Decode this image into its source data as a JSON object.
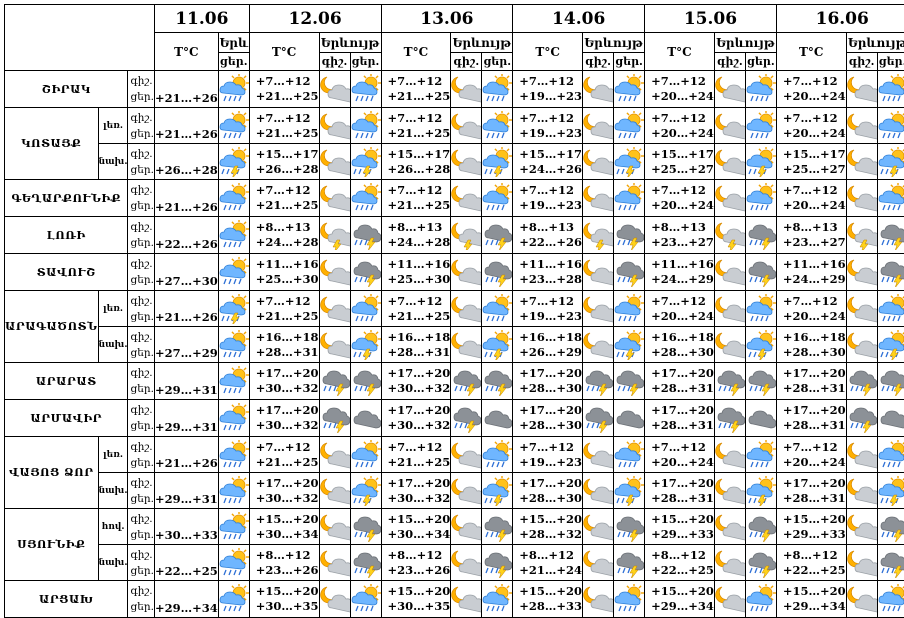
{
  "header": {
    "dates": [
      "11.06",
      "12.06",
      "13.06",
      "14.06",
      "15.06",
      "16.06"
    ],
    "temp_label": "T°C",
    "weather_label": "Երևույթ",
    "weather_label_short": "Երև",
    "day_label": "ցեր.",
    "night_label": "գիշ."
  },
  "regions": [
    {
      "name": "ՇԻՐԱԿ",
      "rows": [
        {
          "sub": "",
          "day0": "+21…+26",
          "days": [
            [
              "+7…+12",
              "+21…+25"
            ],
            [
              "+7…+12",
              "+21…+25"
            ],
            [
              "+7…+12",
              "+19…+23"
            ],
            [
              "+7…+12",
              "+20…+24"
            ],
            [
              "+7…+12",
              "+20…+24"
            ]
          ],
          "icons": {
            "d0": "sun-rain",
            "n": "moon-cloud",
            "d": "sun-rain"
          }
        }
      ]
    },
    {
      "name": "ԿՈՏԱՅՔ",
      "rows": [
        {
          "sub": "լեռ.",
          "day0": "+21…+26",
          "days": [
            [
              "+7…+12",
              "+21…+25"
            ],
            [
              "+7…+12",
              "+21…+25"
            ],
            [
              "+7…+12",
              "+19…+23"
            ],
            [
              "+7…+12",
              "+20…+24"
            ],
            [
              "+7…+12",
              "+20…+24"
            ]
          ],
          "icons": {
            "d0": "sun-rain",
            "n": "moon-cloud",
            "d": "sun-rain"
          }
        },
        {
          "sub": "նախ.",
          "day0": "+26…+28",
          "days": [
            [
              "+15…+17",
              "+26…+28"
            ],
            [
              "+15…+17",
              "+26…+28"
            ],
            [
              "+15…+17",
              "+24…+26"
            ],
            [
              "+15…+17",
              "+25…+27"
            ],
            [
              "+15…+17",
              "+25…+27"
            ]
          ],
          "icons": {
            "d0": "sun-storm",
            "n": "moon-cloud",
            "d": "sun-storm"
          }
        }
      ]
    },
    {
      "name": "ԳԵՂԱՐՔՈՒՆԻՔ",
      "rows": [
        {
          "sub": "",
          "day0": "+21…+26",
          "days": [
            [
              "+7…+12",
              "+21…+25"
            ],
            [
              "+7…+12",
              "+21…+25"
            ],
            [
              "+7…+12",
              "+19…+23"
            ],
            [
              "+7…+12",
              "+20…+24"
            ],
            [
              "+7…+12",
              "+20…+24"
            ]
          ],
          "icons": {
            "d0": "sun-rain",
            "n": "moon-cloud",
            "d": "sun-rain"
          }
        }
      ]
    },
    {
      "name": "ԼՈՌԻ",
      "rows": [
        {
          "sub": "",
          "day0": "+22…+26",
          "days": [
            [
              "+8…+13",
              "+24…+28"
            ],
            [
              "+8…+13",
              "+24…+28"
            ],
            [
              "+8…+13",
              "+22…+26"
            ],
            [
              "+8…+13",
              "+23…+27"
            ],
            [
              "+8…+13",
              "+23…+27"
            ]
          ],
          "icons": {
            "d0": "sun-rain",
            "n": "moon-storm",
            "d": "cloud-storm"
          }
        }
      ]
    },
    {
      "name": "ՏԱՎՈՒՇ",
      "rows": [
        {
          "sub": "",
          "day0": "+27…+30",
          "days": [
            [
              "+11…+16",
              "+25…+30"
            ],
            [
              "+11…+16",
              "+25…+30"
            ],
            [
              "+11…+16",
              "+23…+28"
            ],
            [
              "+11…+16",
              "+24…+29"
            ],
            [
              "+11…+16",
              "+24…+29"
            ]
          ],
          "icons": {
            "d0": "sun-rain",
            "n": "moon-cloud",
            "d": "cloud-storm"
          }
        }
      ]
    },
    {
      "name": "ԱՐԱԳԱԾՈՏՆ",
      "rows": [
        {
          "sub": "լեռ.",
          "day0": "+21…+26",
          "days": [
            [
              "+7…+12",
              "+21…+25"
            ],
            [
              "+7…+12",
              "+21…+25"
            ],
            [
              "+7…+12",
              "+19…+23"
            ],
            [
              "+7…+12",
              "+20…+24"
            ],
            [
              "+7…+12",
              "+20…+24"
            ]
          ],
          "icons": {
            "d0": "sun-storm",
            "n": "moon-cloud",
            "d": "sun-rain"
          }
        },
        {
          "sub": "նախ.",
          "day0": "+27…+29",
          "days": [
            [
              "+16…+18",
              "+28…+31"
            ],
            [
              "+16…+18",
              "+28…+31"
            ],
            [
              "+16…+18",
              "+26…+29"
            ],
            [
              "+16…+18",
              "+28…+30"
            ],
            [
              "+16…+18",
              "+28…+30"
            ]
          ],
          "icons": {
            "d0": "sun-rain",
            "n": "moon-cloud",
            "d": "sun-storm"
          }
        }
      ]
    },
    {
      "name": "ԱՐԱՐԱՏ",
      "rows": [
        {
          "sub": "",
          "day0": "+29…+31",
          "days": [
            [
              "+17…+20",
              "+30…+32"
            ],
            [
              "+17…+20",
              "+30…+32"
            ],
            [
              "+17…+20",
              "+28…+30"
            ],
            [
              "+17…+20",
              "+28…+31"
            ],
            [
              "+17…+20",
              "+28…+31"
            ]
          ],
          "icons": {
            "d0": "sun-rain",
            "n": "cloud-storm",
            "d": "cloud-storm"
          }
        }
      ]
    },
    {
      "name": "ԱՐՄԱՎԻՐ",
      "rows": [
        {
          "sub": "",
          "day0": "+29…+31",
          "days": [
            [
              "+17…+20",
              "+30…+32"
            ],
            [
              "+17…+20",
              "+30…+32"
            ],
            [
              "+17…+20",
              "+28…+30"
            ],
            [
              "+17…+20",
              "+28…+31"
            ],
            [
              "+17…+20",
              "+28…+31"
            ]
          ],
          "icons": {
            "d0": "sun-rain",
            "n": "cloud-storm",
            "d": "cloud"
          }
        }
      ]
    },
    {
      "name": "ՎԱՅՈՑ ՁՈՐ",
      "rows": [
        {
          "sub": "լեռ.",
          "day0": "+21…+26",
          "days": [
            [
              "+7…+12",
              "+21…+25"
            ],
            [
              "+7…+12",
              "+21…+25"
            ],
            [
              "+7…+12",
              "+19…+23"
            ],
            [
              "+7…+12",
              "+20…+24"
            ],
            [
              "+7…+12",
              "+20…+24"
            ]
          ],
          "icons": {
            "d0": "sun-rain",
            "n": "moon-cloud",
            "d": "sun-rain"
          }
        },
        {
          "sub": "նախ.",
          "day0": "+29…+31",
          "days": [
            [
              "+17…+20",
              "+30…+32"
            ],
            [
              "+17…+20",
              "+30…+32"
            ],
            [
              "+17…+20",
              "+28…+30"
            ],
            [
              "+17…+20",
              "+28…+31"
            ],
            [
              "+17…+20",
              "+28…+31"
            ]
          ],
          "icons": {
            "d0": "sun-rain",
            "n": "moon-cloud",
            "d": "sun-storm"
          }
        }
      ]
    },
    {
      "name": "ՍՅՈՒՆԻՔ",
      "rows": [
        {
          "sub": "հով.",
          "day0": "+30…+33",
          "days": [
            [
              "+15…+20",
              "+30…+34"
            ],
            [
              "+15…+20",
              "+30…+34"
            ],
            [
              "+15…+20",
              "+28…+32"
            ],
            [
              "+15…+20",
              "+29…+33"
            ],
            [
              "+15…+20",
              "+29…+33"
            ]
          ],
          "icons": {
            "d0": "sun-rain",
            "n": "moon-cloud",
            "d": "cloud-storm"
          }
        },
        {
          "sub": "նախ.",
          "day0": "+22…+25",
          "days": [
            [
              "+8…+12",
              "+23…+26"
            ],
            [
              "+8…+12",
              "+23…+26"
            ],
            [
              "+8…+12",
              "+21…+24"
            ],
            [
              "+8…+12",
              "+22…+25"
            ],
            [
              "+8…+12",
              "+22…+25"
            ]
          ],
          "icons": {
            "d0": "sun-rain",
            "n": "moon-cloud",
            "d": "cloud-storm"
          }
        }
      ]
    },
    {
      "name": "ԱՐՑԱԽ",
      "rows": [
        {
          "sub": "",
          "day0": "+29…+34",
          "days": [
            [
              "+15…+20",
              "+30…+35"
            ],
            [
              "+15…+20",
              "+30…+35"
            ],
            [
              "+15…+20",
              "+28…+33"
            ],
            [
              "+15…+20",
              "+29…+34"
            ],
            [
              "+15…+20",
              "+29…+34"
            ]
          ],
          "icons": {
            "d0": "sun-rain",
            "n": "moon-cloud",
            "d": "sun-rain"
          }
        }
      ]
    }
  ]
}
